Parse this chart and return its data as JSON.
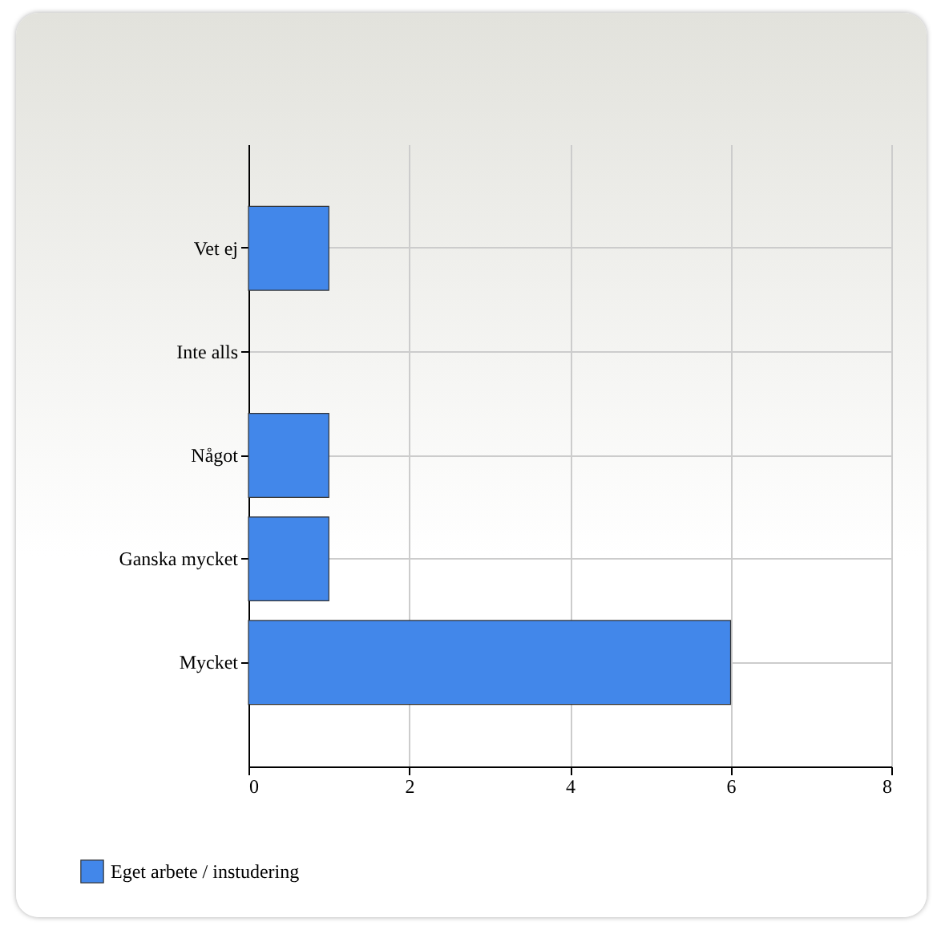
{
  "chart_data": {
    "type": "bar",
    "orientation": "horizontal",
    "categories": [
      "Vet ej",
      "Inte alls",
      "Något",
      "Ganska mycket",
      "Mycket"
    ],
    "series": [
      {
        "name": "Eget arbete / instudering",
        "color": "#4287ea",
        "values": [
          1,
          0,
          1,
          1,
          6
        ]
      }
    ],
    "xlim": [
      0,
      8
    ],
    "xticks": [
      0,
      2,
      4,
      6,
      8
    ],
    "grid": true,
    "legend": "bottom left"
  }
}
